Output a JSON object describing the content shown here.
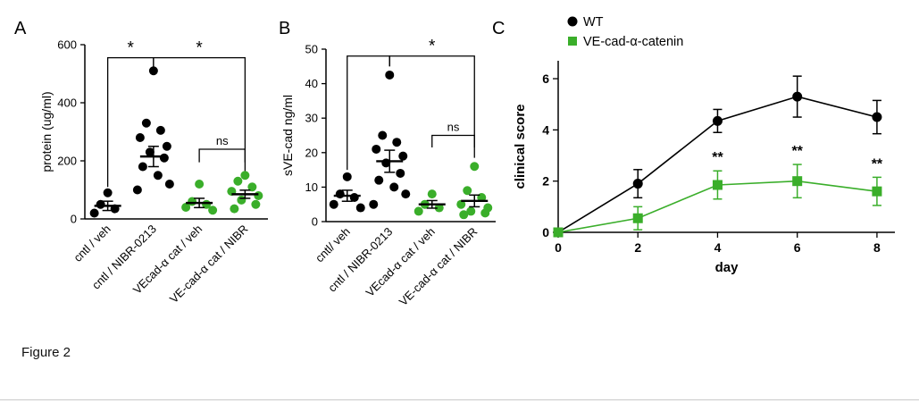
{
  "caption": "Figure 2",
  "panels": [
    {
      "label": "A"
    },
    {
      "label": "B"
    },
    {
      "label": "C"
    }
  ],
  "colors": {
    "series_black": "#000000",
    "series_green": "#3aae2a"
  },
  "chart_data": [
    {
      "type": "scatter",
      "panel": "A",
      "ylabel": "protein (ug/ml)",
      "ylim": [
        0,
        600
      ],
      "yticks": [
        0,
        200,
        400,
        600
      ],
      "categories": [
        "cntl / veh",
        "cntl / NIBR-0213",
        "VEcad-α cat / veh",
        "VE-cad-α cat / NIBR"
      ],
      "group_colors": [
        "#000000",
        "#000000",
        "#3aae2a",
        "#3aae2a"
      ],
      "points": [
        [
          20,
          35,
          50,
          90
        ],
        [
          100,
          120,
          150,
          180,
          210,
          230,
          250,
          280,
          305,
          330,
          510
        ],
        [
          30,
          40,
          50,
          60,
          120
        ],
        [
          35,
          50,
          65,
          80,
          95,
          110,
          130,
          150
        ]
      ],
      "means": [
        45,
        215,
        55,
        85
      ],
      "sems": [
        16,
        35,
        16,
        14
      ],
      "brackets": [
        {
          "from": 0,
          "to": 1,
          "y": 555,
          "leg_from": 110,
          "leg_to": 520,
          "label": "*"
        },
        {
          "from": 1,
          "to": 3,
          "y": 555,
          "leg_from": 520,
          "leg_to": 165,
          "label": "*"
        },
        {
          "from": 2,
          "to": 3,
          "y": 240,
          "leg_from": 195,
          "leg_to": 195,
          "label": "ns"
        }
      ]
    },
    {
      "type": "scatter",
      "panel": "B",
      "ylabel": "sVE-cad ng/ml",
      "ylim": [
        0,
        50
      ],
      "yticks": [
        0,
        10,
        20,
        30,
        40,
        50
      ],
      "categories": [
        "cntl/ veh",
        "cntl / NIBR-0213",
        "VEcad-α cat / veh",
        "VE-cad-α cat / NIBR"
      ],
      "group_colors": [
        "#000000",
        "#000000",
        "#3aae2a",
        "#3aae2a"
      ],
      "points": [
        [
          4,
          5,
          7,
          8,
          13
        ],
        [
          5,
          8,
          10,
          12,
          14,
          17,
          19,
          21,
          23,
          25,
          42.5
        ],
        [
          3,
          4,
          5,
          8
        ],
        [
          2,
          2.5,
          3,
          4,
          5,
          7,
          9,
          16
        ]
      ],
      "means": [
        7.5,
        17.5,
        5,
        6
      ],
      "sems": [
        1.6,
        3.2,
        1.1,
        1.7
      ],
      "brackets": [
        {
          "from": 0,
          "to": 1,
          "y": 48,
          "leg_from": 15,
          "leg_to": 45,
          "label": ""
        },
        {
          "from": 1,
          "to": 3,
          "y": 48,
          "leg_from": 45,
          "leg_to": 18.5,
          "label": "*"
        },
        {
          "from": 2,
          "to": 3,
          "y": 25,
          "leg_from": 21.5,
          "leg_to": 21.5,
          "label": "ns"
        }
      ]
    },
    {
      "type": "line",
      "panel": "C",
      "xlabel": "day",
      "ylabel": "clinical score",
      "xlim": [
        0,
        8.45
      ],
      "ylim": [
        0,
        6.7
      ],
      "xticks": [
        0,
        2,
        4,
        6,
        8
      ],
      "yticks": [
        0,
        2,
        4,
        6
      ],
      "legend_position": "top-left",
      "series": [
        {
          "name": "WT",
          "color": "#000000",
          "marker": "circle",
          "x": [
            0,
            2,
            4,
            6,
            8
          ],
          "y": [
            0,
            1.9,
            4.35,
            5.3,
            4.5
          ],
          "err": [
            0,
            0.55,
            0.45,
            0.8,
            0.65
          ]
        },
        {
          "name": "VE-cad-α-catenin",
          "color": "#3aae2a",
          "marker": "square",
          "x": [
            0,
            2,
            4,
            6,
            8
          ],
          "y": [
            0,
            0.55,
            1.85,
            2.0,
            1.6
          ],
          "err": [
            0,
            0.45,
            0.55,
            0.65,
            0.55
          ]
        }
      ],
      "annotations": [
        {
          "x": 4,
          "y": 2.75,
          "text": "**"
        },
        {
          "x": 6,
          "y": 3.0,
          "text": "**"
        },
        {
          "x": 8,
          "y": 2.5,
          "text": "**"
        }
      ]
    }
  ]
}
